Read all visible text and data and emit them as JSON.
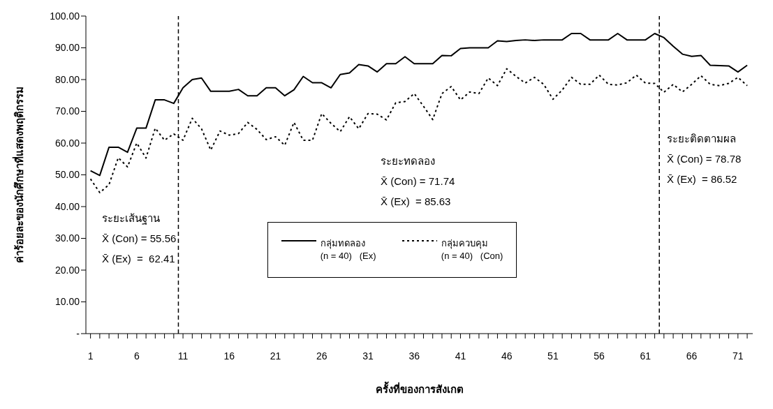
{
  "chart_data": {
    "type": "line",
    "xlabel": "ครั้งที่ของการสังเกต",
    "ylabel": "ค่าร้อยละของนักศึกษาที่แสดงพฤติกรรม",
    "x": [
      1,
      2,
      3,
      4,
      5,
      6,
      7,
      8,
      9,
      10,
      11,
      12,
      13,
      14,
      15,
      16,
      17,
      18,
      19,
      20,
      21,
      22,
      23,
      24,
      25,
      26,
      27,
      28,
      29,
      30,
      31,
      32,
      33,
      34,
      35,
      36,
      37,
      38,
      39,
      40,
      41,
      42,
      43,
      44,
      45,
      46,
      47,
      48,
      49,
      50,
      51,
      52,
      53,
      54,
      55,
      56,
      57,
      58,
      59,
      60,
      61,
      62,
      63,
      64,
      65,
      66,
      67,
      68,
      69,
      70,
      71,
      72
    ],
    "series": [
      {
        "name": "กลุ่มทดลอง\n(n = 40)   (Ex)",
        "color": "#000000",
        "line_style": "solid",
        "values": [
          51.3,
          49.8,
          58.7,
          58.7,
          57.1,
          64.7,
          64.7,
          73.6,
          73.6,
          72.5,
          77.4,
          80.0,
          80.5,
          76.3,
          76.3,
          76.3,
          76.9,
          74.9,
          74.9,
          77.4,
          77.4,
          74.9,
          76.8,
          81.0,
          79.0,
          79.0,
          77.4,
          81.6,
          82.1,
          84.7,
          84.3,
          82.4,
          85.0,
          85.0,
          87.2,
          85.0,
          85.0,
          85.0,
          87.6,
          87.5,
          89.8,
          90,
          90,
          90,
          92.2,
          92,
          92.3,
          92.5,
          92.3,
          92.5,
          92.5,
          92.5,
          94.5,
          94.5,
          92.5,
          92.5,
          92.5,
          94.5,
          92.5,
          92.5,
          92.5,
          94.5,
          93.2,
          90.5,
          88,
          87.3,
          87.6,
          84.5,
          84.4,
          84.3,
          82.4,
          84.5
        ]
      },
      {
        "name": "กลุ่มควบคุม\n(n = 40)   (Con)",
        "color": "#000000",
        "line_style": "dotted",
        "values": [
          48.7,
          44.4,
          46.9,
          55.4,
          52.5,
          60,
          55.3,
          64.7,
          60.9,
          62.9,
          60.9,
          67.8,
          64.5,
          57.8,
          63.8,
          62.5,
          63,
          66.5,
          64.3,
          61.1,
          62,
          59.3,
          66.5,
          60.9,
          60.9,
          69.3,
          66.2,
          63.6,
          68.3,
          64.5,
          69.3,
          69.1,
          67.3,
          72.7,
          73.1,
          75.6,
          71.6,
          67.4,
          75.6,
          77.8,
          73.6,
          76.1,
          75.6,
          80.5,
          78.1,
          83.4,
          81,
          78.9,
          80.7,
          78.5,
          73.8,
          76.7,
          80.7,
          78.5,
          78.5,
          81.4,
          78.5,
          78.3,
          79,
          81.4,
          78.9,
          78.8,
          76,
          78.5,
          76.1,
          78.5,
          81.2,
          78.5,
          78.1,
          78.8,
          80.7,
          78.1
        ]
      }
    ],
    "xlim": [
      0.5,
      72.6
    ],
    "xticks": [
      1,
      {
        "value": 2,
        "label": null
      },
      {
        "value": 3,
        "label": null
      },
      {
        "value": 4,
        "label": null
      },
      {
        "value": 5,
        "label": null
      },
      6,
      {
        "value": 7,
        "label": null
      },
      {
        "value": 8,
        "label": null
      },
      {
        "value": 9,
        "label": null
      },
      {
        "value": 10,
        "label": null
      },
      11,
      {
        "value": 12,
        "label": null
      },
      {
        "value": 13,
        "label": null
      },
      {
        "value": 14,
        "label": null
      },
      {
        "value": 15,
        "label": null
      },
      16,
      {
        "value": 17,
        "label": null
      },
      {
        "value": 18,
        "label": null
      },
      {
        "value": 19,
        "label": null
      },
      {
        "value": 20,
        "label": null
      },
      21,
      {
        "value": 22,
        "label": null
      },
      {
        "value": 23,
        "label": null
      },
      {
        "value": 24,
        "label": null
      },
      {
        "value": 25,
        "label": null
      },
      26,
      {
        "value": 27,
        "label": null
      },
      {
        "value": 28,
        "label": null
      },
      {
        "value": 29,
        "label": null
      },
      {
        "value": 30,
        "label": null
      },
      31,
      {
        "value": 32,
        "label": null
      },
      {
        "value": 33,
        "label": null
      },
      {
        "value": 34,
        "label": null
      },
      {
        "value": 35,
        "label": null
      },
      36,
      {
        "value": 37,
        "label": null
      },
      {
        "value": 38,
        "label": null
      },
      {
        "value": 39,
        "label": null
      },
      {
        "value": 40,
        "label": null
      },
      41,
      {
        "value": 42,
        "label": null
      },
      {
        "value": 43,
        "label": null
      },
      {
        "value": 44,
        "label": null
      },
      {
        "value": 45,
        "label": null
      },
      46,
      {
        "value": 47,
        "label": null
      },
      {
        "value": 48,
        "label": null
      },
      {
        "value": 49,
        "label": null
      },
      {
        "value": 50,
        "label": null
      },
      51,
      {
        "value": 52,
        "label": null
      },
      {
        "value": 53,
        "label": null
      },
      {
        "value": 54,
        "label": null
      },
      {
        "value": 55,
        "label": null
      },
      56,
      {
        "value": 57,
        "label": null
      },
      {
        "value": 58,
        "label": null
      },
      {
        "value": 59,
        "label": null
      },
      {
        "value": 60,
        "label": null
      },
      61,
      {
        "value": 62,
        "label": null
      },
      {
        "value": 63,
        "label": null
      },
      {
        "value": 64,
        "label": null
      },
      {
        "value": 65,
        "label": null
      },
      66,
      {
        "value": 67,
        "label": null
      },
      {
        "value": 68,
        "label": null
      },
      {
        "value": 69,
        "label": null
      },
      {
        "value": 70,
        "label": null
      },
      71,
      {
        "value": 72,
        "label": null
      }
    ],
    "ylim": [
      0,
      100
    ],
    "yticks": [
      {
        "value": 0,
        "label": "-"
      },
      {
        "value": 10,
        "label": "10.00"
      },
      {
        "value": 20,
        "label": "20.00"
      },
      {
        "value": 30,
        "label": "30.00"
      },
      {
        "value": 40,
        "label": "40.00"
      },
      {
        "value": 50,
        "label": "50.00"
      },
      {
        "value": 60,
        "label": "60.00"
      },
      {
        "value": 70,
        "label": "70.00"
      },
      {
        "value": 80,
        "label": "80.00"
      },
      {
        "value": 90,
        "label": "90.00"
      },
      {
        "value": 100,
        "label": "100.00"
      }
    ],
    "ref_lines": [
      {
        "axis": "x",
        "value": 10.5,
        "color": "#000000",
        "line_style": "dashed"
      },
      {
        "axis": "x",
        "value": 62.5,
        "color": "#000000",
        "line_style": "dashed"
      }
    ],
    "legend": "bottom",
    "annotations": [
      "ระยะเส้นฐาน",
      "X̄ (Con) = 55.56",
      "X̄ (Ex)  =  62.41",
      "ระยะทดลอง",
      "X̄ (Con) = 71.74",
      "X̄ (Ex)  = 85.63",
      "ระยะติดตามผล",
      "X̄ (Con) = 78.78",
      "X̄ (Ex)  = 86.52"
    ]
  }
}
